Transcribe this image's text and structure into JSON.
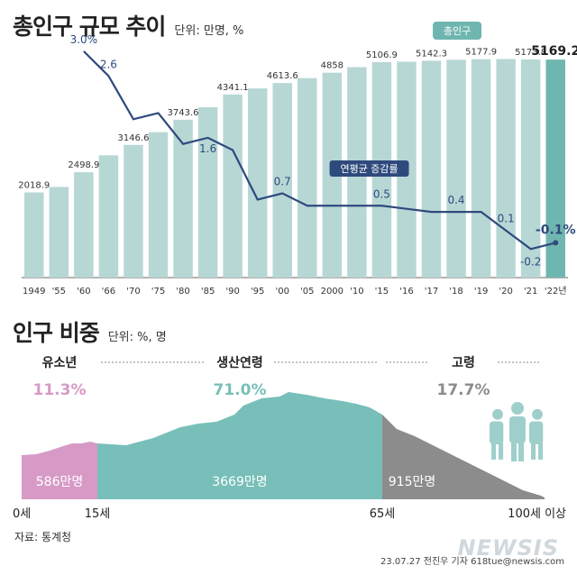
{
  "header": {
    "title": "총인구 규모 추이",
    "unit": "단위: 만명, %"
  },
  "chart_data": [
    {
      "type": "bar",
      "categories": [
        "1949",
        "'55",
        "'60",
        "'66",
        "'70",
        "'75",
        "'80",
        "'85",
        "'90",
        "'95",
        "'00",
        "'05",
        "2000",
        "'10",
        "'15",
        "'16",
        "'17",
        "'18",
        "'19",
        "'20",
        "'21",
        "'22년"
      ],
      "series": [
        {
          "name": "총인구",
          "values": [
            2018.9,
            null,
            2498.9,
            null,
            3146.6,
            null,
            3743.6,
            null,
            4341.1,
            null,
            4613.6,
            null,
            4858,
            null,
            5106.9,
            null,
            5142.3,
            null,
            5177.9,
            null,
            5173.8,
            5169.2
          ],
          "estimated_values": [
            2018.9,
            2150,
            2498.9,
            2900,
            3146.6,
            3450,
            3743.6,
            4040,
            4341.1,
            4485,
            4613.6,
            4730,
            4858,
            4990,
            5106.9,
            5120,
            5142.3,
            5165,
            5177.9,
            5183,
            5173.8,
            5169.2
          ]
        },
        {
          "name": "연평균 증감률",
          "labels": [
            null,
            null,
            "3.0%",
            "2.6",
            null,
            null,
            null,
            "1.6",
            null,
            null,
            "0.7",
            null,
            null,
            null,
            "0.5",
            null,
            null,
            "0.4",
            null,
            "0.1",
            "-0.2",
            "-0.1%"
          ],
          "values": [
            null,
            null,
            3.0,
            2.6,
            1.9,
            2.0,
            1.5,
            1.6,
            1.4,
            0.6,
            0.7,
            0.5,
            0.5,
            0.5,
            0.5,
            0.45,
            0.4,
            0.4,
            0.4,
            0.1,
            -0.2,
            -0.1
          ]
        }
      ],
      "legend_label": "연평균 증감률",
      "bar_tag": "총인구",
      "highlight_value": "5169.2",
      "colors": {
        "bar": "#b7d7d5",
        "bar_last": "#6fb6b0",
        "line": "#2e4a7d",
        "highlight": "#222222"
      }
    },
    {
      "type": "area",
      "title": "인구 비중",
      "unit": "단위: %, 명",
      "groups": [
        {
          "name": "유소년",
          "share": "11.3%",
          "count": "586만명",
          "color": "#d79ac6"
        },
        {
          "name": "생산연령",
          "share": "71.0%",
          "count": "3669만명",
          "color": "#78bfb9"
        },
        {
          "name": "고령",
          "share": "17.7%",
          "count": "915만명",
          "color": "#8c8c8c"
        }
      ],
      "x_labels": [
        "0세",
        "15세",
        "65세",
        "100세 이상"
      ]
    }
  ],
  "footer": {
    "source": "자료: 통계청",
    "credit": "23.07.27 전진우 기자 618tue@newsis.com",
    "watermark": "NEWSIS"
  }
}
